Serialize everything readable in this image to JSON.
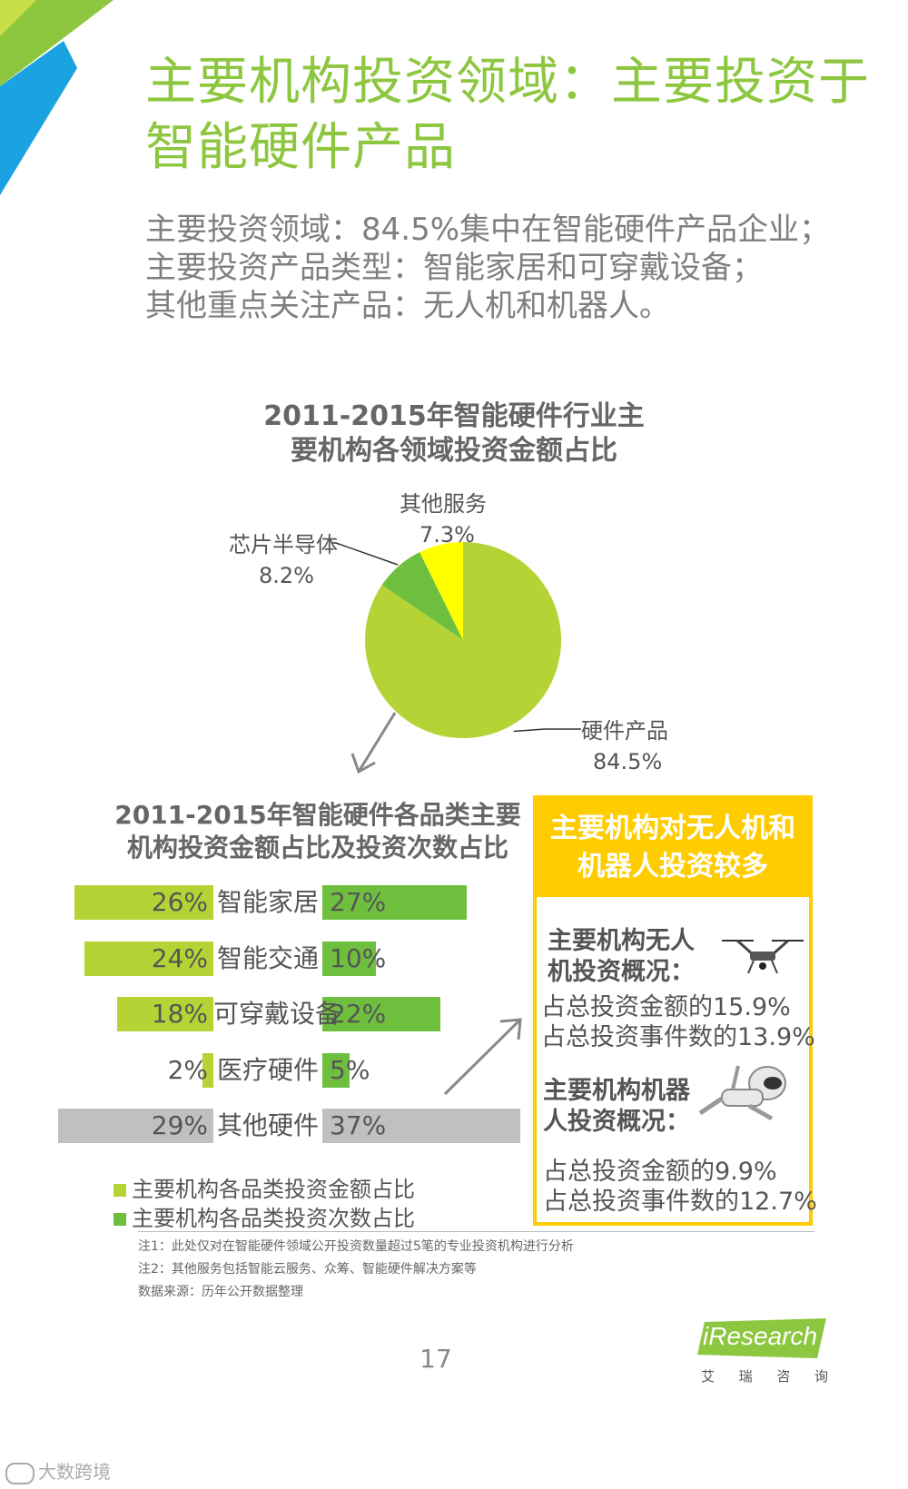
{
  "title": "主要机构投资领域：主要投资于智能硬件产品",
  "subtitle_lines": [
    "主要投资领域：84.5%集中在智能硬件产品企业；",
    "主要投资产品类型：智能家居和可穿戴设备；",
    "其他重点关注产品：无人机和机器人。"
  ],
  "colors": {
    "green": "#b5d334",
    "green_dark": "#8dc63f",
    "green_mid": "#6fbf3f",
    "yellow": "#ffff00",
    "gray": "#c0c0c0",
    "gold": "#ffcc00",
    "blue": "#1aa3e0"
  },
  "chart_data": [
    {
      "type": "pie",
      "title_lines": [
        "2011-2015年智能硬件行业主",
        "要机构各领域投资金额占比"
      ],
      "slices": [
        {
          "name": "硬件产品",
          "value": 84.5,
          "label": "84.5%"
        },
        {
          "name": "芯片半导体",
          "value": 8.2,
          "label": "8.2%"
        },
        {
          "name": "其他服务",
          "value": 7.3,
          "label": "7.3%"
        }
      ]
    },
    {
      "type": "bar",
      "title_lines": [
        "2011-2015年智能硬件各品类主要",
        "机构投资金额占比及投资次数占比"
      ],
      "categories": [
        "智能家居",
        "智能交通",
        "可穿戴设备",
        "医疗硬件",
        "其他硬件"
      ],
      "series": [
        {
          "name": "主要机构各品类投资金额占比",
          "values": [
            26,
            24,
            18,
            2,
            29
          ],
          "labels": [
            "26%",
            "24%",
            "18%",
            "2%",
            "29%"
          ]
        },
        {
          "name": "主要机构各品类投资次数占比",
          "values": [
            27,
            10,
            22,
            5,
            37
          ],
          "labels": [
            "27%",
            "10%",
            "22%",
            "5%",
            "37%"
          ]
        }
      ]
    }
  ],
  "box": {
    "header": [
      "主要机构对无人机和",
      "机器人投资较多"
    ],
    "drone_heading": [
      "主要机构无人",
      "机投资概况："
    ],
    "drone_lines": [
      "占总投资金额的15.9%",
      "占总投资事件数的13.9%"
    ],
    "robot_heading": [
      "主要机构机器",
      "人投资概况："
    ],
    "robot_lines": [
      "占总投资金额的9.9%",
      "占总投资事件数的12.7%"
    ]
  },
  "notes": [
    "注1：此处仅对在智能硬件领域公开投资数量超过5笔的专业投资机构进行分析",
    "注2：其他服务包括智能云服务、众筹、智能硬件解决方案等",
    "数据来源：历年公开数据整理"
  ],
  "page_number": "17",
  "brand": {
    "logo": "iResearch",
    "chinese": [
      "艾",
      "瑞",
      "咨",
      "询"
    ]
  },
  "watermark": "大数跨境"
}
